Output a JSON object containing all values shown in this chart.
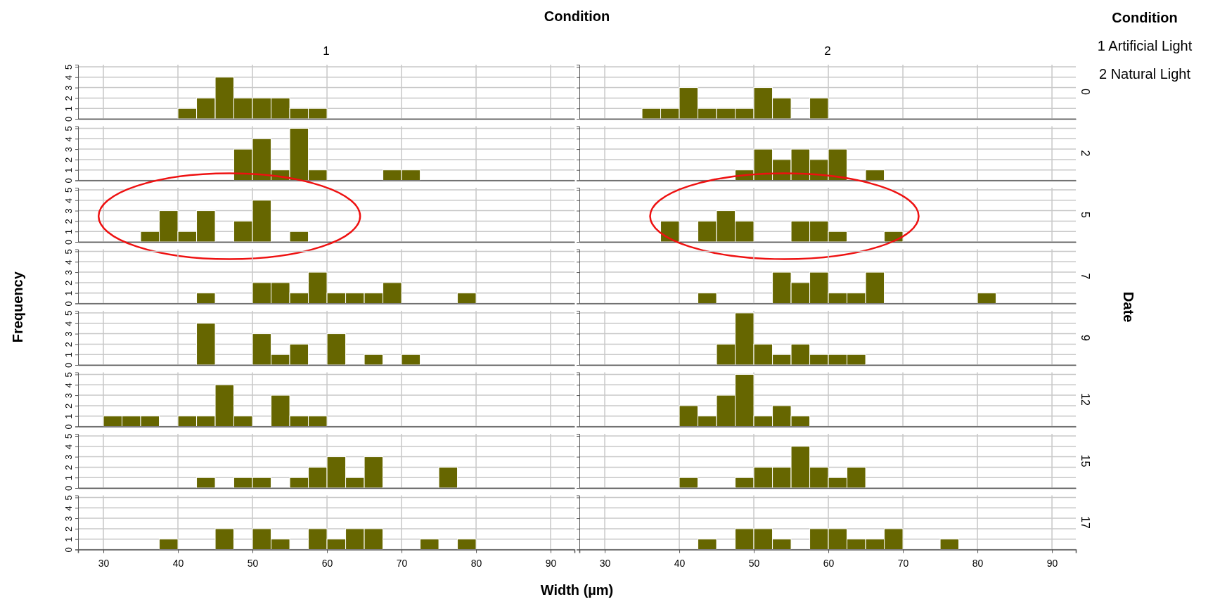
{
  "chart_data": [
    {
      "type": "histogram",
      "title": "1",
      "color": "#666600",
      "bins": [
        30,
        32.5,
        35,
        37.5,
        40,
        42.5,
        45,
        47.5,
        50,
        52.5,
        55,
        57.5,
        60,
        62.5,
        65,
        67.5,
        70,
        72.5,
        75,
        77.5,
        80,
        82.5
      ],
      "values": [
        0,
        0,
        0,
        0,
        1,
        2,
        4,
        2,
        2,
        2,
        1,
        1,
        0,
        0,
        0,
        0,
        0,
        0,
        0,
        0,
        0
      ],
      "xlim": [
        26.6,
        93.2
      ],
      "xticks": [
        30,
        40,
        50,
        60,
        70,
        80,
        90
      ],
      "ylim": [
        0,
        5.2
      ],
      "yticks": [
        0,
        1,
        2,
        3,
        4,
        5
      ],
      "grid": true,
      "tick_labels": "y"
    },
    {
      "type": "histogram",
      "title": "2",
      "y2label": "0",
      "color": "#666600",
      "bins": [
        30,
        32.5,
        35,
        37.5,
        40,
        42.5,
        45,
        47.5,
        50,
        52.5,
        55,
        57.5,
        60,
        62.5,
        65,
        67.5,
        70,
        72.5,
        75,
        77.5,
        80,
        82.5
      ],
      "values": [
        0,
        0,
        1,
        1,
        3,
        1,
        1,
        1,
        3,
        2,
        0,
        2,
        0,
        0,
        0,
        0,
        0,
        0,
        0,
        0,
        0
      ],
      "xlim": [
        26.6,
        93.2
      ],
      "xticks": [
        30,
        40,
        50,
        60,
        70,
        80,
        90
      ],
      "ylim": [
        0,
        5.2
      ],
      "yticks": [
        0,
        1,
        2,
        3,
        4,
        5
      ],
      "grid": true,
      "tick_labels": false
    },
    {
      "type": "histogram",
      "color": "#666600",
      "bins": [
        30,
        32.5,
        35,
        37.5,
        40,
        42.5,
        45,
        47.5,
        50,
        52.5,
        55,
        57.5,
        60,
        62.5,
        65,
        67.5,
        70,
        72.5,
        75,
        77.5,
        80,
        82.5
      ],
      "values": [
        0,
        0,
        0,
        0,
        0,
        0,
        0,
        3,
        4,
        1,
        5,
        1,
        0,
        0,
        0,
        1,
        1,
        0,
        0,
        0,
        0
      ],
      "xlim": [
        26.6,
        93.2
      ],
      "xticks": [
        30,
        40,
        50,
        60,
        70,
        80,
        90
      ],
      "ylim": [
        0,
        5.2
      ],
      "yticks": [
        0,
        1,
        2,
        3,
        4,
        5
      ],
      "grid": true,
      "tick_labels": "y"
    },
    {
      "type": "histogram",
      "y2label": "2",
      "color": "#666600",
      "bins": [
        30,
        32.5,
        35,
        37.5,
        40,
        42.5,
        45,
        47.5,
        50,
        52.5,
        55,
        57.5,
        60,
        62.5,
        65,
        67.5,
        70,
        72.5,
        75,
        77.5,
        80,
        82.5
      ],
      "values": [
        0,
        0,
        0,
        0,
        0,
        0,
        0,
        1,
        3,
        2,
        3,
        2,
        3,
        0,
        1,
        0,
        0,
        0,
        0,
        0,
        0
      ],
      "xlim": [
        26.6,
        93.2
      ],
      "xticks": [
        30,
        40,
        50,
        60,
        70,
        80,
        90
      ],
      "ylim": [
        0,
        5.2
      ],
      "yticks": [
        0,
        1,
        2,
        3,
        4,
        5
      ],
      "grid": true,
      "tick_labels": false
    },
    {
      "type": "histogram",
      "color": "#666600",
      "bins": [
        30,
        32.5,
        35,
        37.5,
        40,
        42.5,
        45,
        47.5,
        50,
        52.5,
        55,
        57.5,
        60,
        62.5,
        65,
        67.5,
        70,
        72.5,
        75,
        77.5,
        80,
        82.5
      ],
      "values": [
        0,
        0,
        1,
        3,
        1,
        3,
        0,
        2,
        4,
        0,
        1,
        0,
        0,
        0,
        0,
        0,
        0,
        0,
        0,
        0,
        0
      ],
      "xlim": [
        26.6,
        93.2
      ],
      "xticks": [
        30,
        40,
        50,
        60,
        70,
        80,
        90
      ],
      "ylim": [
        0,
        5.2
      ],
      "yticks": [
        0,
        1,
        2,
        3,
        4,
        5
      ],
      "grid": true,
      "tick_labels": "y"
    },
    {
      "type": "histogram",
      "y2label": "5",
      "color": "#666600",
      "bins": [
        30,
        32.5,
        35,
        37.5,
        40,
        42.5,
        45,
        47.5,
        50,
        52.5,
        55,
        57.5,
        60,
        62.5,
        65,
        67.5,
        70,
        72.5,
        75,
        77.5,
        80,
        82.5
      ],
      "values": [
        0,
        0,
        0,
        2,
        0,
        2,
        3,
        2,
        0,
        0,
        2,
        2,
        1,
        0,
        0,
        1,
        0,
        0,
        0,
        0,
        0
      ],
      "xlim": [
        26.6,
        93.2
      ],
      "xticks": [
        30,
        40,
        50,
        60,
        70,
        80,
        90
      ],
      "ylim": [
        0,
        5.2
      ],
      "yticks": [
        0,
        1,
        2,
        3,
        4,
        5
      ],
      "grid": true,
      "tick_labels": false
    },
    {
      "type": "histogram",
      "color": "#666600",
      "bins": [
        30,
        32.5,
        35,
        37.5,
        40,
        42.5,
        45,
        47.5,
        50,
        52.5,
        55,
        57.5,
        60,
        62.5,
        65,
        67.5,
        70,
        72.5,
        75,
        77.5,
        80,
        82.5
      ],
      "values": [
        0,
        0,
        0,
        0,
        0,
        1,
        0,
        0,
        2,
        2,
        1,
        3,
        1,
        1,
        1,
        2,
        0,
        0,
        0,
        1,
        0
      ],
      "xlim": [
        26.6,
        93.2
      ],
      "xticks": [
        30,
        40,
        50,
        60,
        70,
        80,
        90
      ],
      "ylim": [
        0,
        5.2
      ],
      "yticks": [
        0,
        1,
        2,
        3,
        4,
        5
      ],
      "grid": true,
      "tick_labels": "y"
    },
    {
      "type": "histogram",
      "y2label": "7",
      "color": "#666600",
      "bins": [
        30,
        32.5,
        35,
        37.5,
        40,
        42.5,
        45,
        47.5,
        50,
        52.5,
        55,
        57.5,
        60,
        62.5,
        65,
        67.5,
        70,
        72.5,
        75,
        77.5,
        80,
        82.5
      ],
      "values": [
        0,
        0,
        0,
        0,
        0,
        1,
        0,
        0,
        0,
        3,
        2,
        3,
        1,
        1,
        3,
        0,
        0,
        0,
        0,
        0,
        1
      ],
      "xlim": [
        26.6,
        93.2
      ],
      "xticks": [
        30,
        40,
        50,
        60,
        70,
        80,
        90
      ],
      "ylim": [
        0,
        5.2
      ],
      "yticks": [
        0,
        1,
        2,
        3,
        4,
        5
      ],
      "grid": true,
      "tick_labels": false
    },
    {
      "type": "histogram",
      "color": "#666600",
      "bins": [
        30,
        32.5,
        35,
        37.5,
        40,
        42.5,
        45,
        47.5,
        50,
        52.5,
        55,
        57.5,
        60,
        62.5,
        65,
        67.5,
        70,
        72.5,
        75,
        77.5,
        80,
        82.5
      ],
      "values": [
        0,
        0,
        0,
        0,
        0,
        4,
        0,
        0,
        3,
        1,
        2,
        0,
        3,
        0,
        1,
        0,
        1,
        0,
        0,
        0,
        0
      ],
      "xlim": [
        26.6,
        93.2
      ],
      "xticks": [
        30,
        40,
        50,
        60,
        70,
        80,
        90
      ],
      "ylim": [
        0,
        5.2
      ],
      "yticks": [
        0,
        1,
        2,
        3,
        4,
        5
      ],
      "grid": true,
      "tick_labels": "y"
    },
    {
      "type": "histogram",
      "y2label": "9",
      "color": "#666600",
      "bins": [
        30,
        32.5,
        35,
        37.5,
        40,
        42.5,
        45,
        47.5,
        50,
        52.5,
        55,
        57.5,
        60,
        62.5,
        65,
        67.5,
        70,
        72.5,
        75,
        77.5,
        80,
        82.5
      ],
      "values": [
        0,
        0,
        0,
        0,
        0,
        0,
        2,
        5,
        2,
        1,
        2,
        1,
        1,
        1,
        0,
        0,
        0,
        0,
        0,
        0,
        0
      ],
      "xlim": [
        26.6,
        93.2
      ],
      "xticks": [
        30,
        40,
        50,
        60,
        70,
        80,
        90
      ],
      "ylim": [
        0,
        5.2
      ],
      "yticks": [
        0,
        1,
        2,
        3,
        4,
        5
      ],
      "grid": true,
      "tick_labels": false
    },
    {
      "type": "histogram",
      "color": "#666600",
      "bins": [
        30,
        32.5,
        35,
        37.5,
        40,
        42.5,
        45,
        47.5,
        50,
        52.5,
        55,
        57.5,
        60,
        62.5,
        65,
        67.5,
        70,
        72.5,
        75,
        77.5,
        80,
        82.5
      ],
      "values": [
        1,
        1,
        1,
        0,
        1,
        1,
        4,
        1,
        0,
        3,
        1,
        1,
        0,
        0,
        0,
        0,
        0,
        0,
        0,
        0,
        0
      ],
      "xlim": [
        26.6,
        93.2
      ],
      "xticks": [
        30,
        40,
        50,
        60,
        70,
        80,
        90
      ],
      "ylim": [
        0,
        5.2
      ],
      "yticks": [
        0,
        1,
        2,
        3,
        4,
        5
      ],
      "grid": true,
      "tick_labels": "y"
    },
    {
      "type": "histogram",
      "y2label": "12",
      "color": "#666600",
      "bins": [
        30,
        32.5,
        35,
        37.5,
        40,
        42.5,
        45,
        47.5,
        50,
        52.5,
        55,
        57.5,
        60,
        62.5,
        65,
        67.5,
        70,
        72.5,
        75,
        77.5,
        80,
        82.5
      ],
      "values": [
        0,
        0,
        0,
        0,
        2,
        1,
        3,
        5,
        1,
        2,
        1,
        0,
        0,
        0,
        0,
        0,
        0,
        0,
        0,
        0,
        0
      ],
      "xlim": [
        26.6,
        93.2
      ],
      "xticks": [
        30,
        40,
        50,
        60,
        70,
        80,
        90
      ],
      "ylim": [
        0,
        5.2
      ],
      "yticks": [
        0,
        1,
        2,
        3,
        4,
        5
      ],
      "grid": true,
      "tick_labels": false
    },
    {
      "type": "histogram",
      "color": "#666600",
      "bins": [
        30,
        32.5,
        35,
        37.5,
        40,
        42.5,
        45,
        47.5,
        50,
        52.5,
        55,
        57.5,
        60,
        62.5,
        65,
        67.5,
        70,
        72.5,
        75,
        77.5,
        80,
        82.5
      ],
      "values": [
        0,
        0,
        0,
        0,
        0,
        1,
        0,
        1,
        1,
        0,
        1,
        2,
        3,
        1,
        3,
        0,
        0,
        0,
        2,
        0,
        0
      ],
      "xlim": [
        26.6,
        93.2
      ],
      "xticks": [
        30,
        40,
        50,
        60,
        70,
        80,
        90
      ],
      "ylim": [
        0,
        5.2
      ],
      "yticks": [
        0,
        1,
        2,
        3,
        4,
        5
      ],
      "grid": true,
      "tick_labels": "y"
    },
    {
      "type": "histogram",
      "y2label": "15",
      "color": "#666600",
      "bins": [
        30,
        32.5,
        35,
        37.5,
        40,
        42.5,
        45,
        47.5,
        50,
        52.5,
        55,
        57.5,
        60,
        62.5,
        65,
        67.5,
        70,
        72.5,
        75,
        77.5,
        80,
        82.5
      ],
      "values": [
        0,
        0,
        0,
        0,
        1,
        0,
        0,
        1,
        2,
        2,
        4,
        2,
        1,
        2,
        0,
        0,
        0,
        0,
        0,
        0,
        0
      ],
      "xlim": [
        26.6,
        93.2
      ],
      "xticks": [
        30,
        40,
        50,
        60,
        70,
        80,
        90
      ],
      "ylim": [
        0,
        5.2
      ],
      "yticks": [
        0,
        1,
        2,
        3,
        4,
        5
      ],
      "grid": true,
      "tick_labels": false
    },
    {
      "type": "histogram",
      "color": "#666600",
      "bins": [
        30,
        32.5,
        35,
        37.5,
        40,
        42.5,
        45,
        47.5,
        50,
        52.5,
        55,
        57.5,
        60,
        62.5,
        65,
        67.5,
        70,
        72.5,
        75,
        77.5,
        80,
        82.5
      ],
      "values": [
        0,
        0,
        0,
        1,
        0,
        0,
        2,
        0,
        2,
        1,
        0,
        2,
        1,
        2,
        2,
        0,
        0,
        1,
        0,
        1,
        0
      ],
      "xlim": [
        26.6,
        93.2
      ],
      "xticks": [
        30,
        40,
        50,
        60,
        70,
        80,
        90
      ],
      "ylim": [
        0,
        5.2
      ],
      "yticks": [
        0,
        1,
        2,
        3,
        4,
        5
      ],
      "grid": true
    },
    {
      "type": "histogram",
      "y2label": "17",
      "color": "#666600",
      "bins": [
        30,
        32.5,
        35,
        37.5,
        40,
        42.5,
        45,
        47.5,
        50,
        52.5,
        55,
        57.5,
        60,
        62.5,
        65,
        67.5,
        70,
        72.5,
        75,
        77.5,
        80,
        82.5
      ],
      "values": [
        0,
        0,
        0,
        0,
        0,
        1,
        0,
        2,
        2,
        1,
        0,
        2,
        2,
        1,
        1,
        2,
        0,
        0,
        1,
        0,
        0
      ],
      "xlim": [
        26.6,
        93.2
      ],
      "xticks": [
        30,
        40,
        50,
        60,
        70,
        80,
        90
      ],
      "ylim": [
        0,
        5.2
      ],
      "yticks": [
        0,
        1,
        2,
        3,
        4,
        5
      ],
      "grid": true,
      "tick_labels": "x"
    },
    {
      "type": "other",
      "title": "Condition",
      "xlabel": "Width (µm)",
      "ylabel": "Frequency",
      "y2label": "Date"
    },
    {
      "type": "other",
      "legend_title": "Condition",
      "annotations": [
        "1 Artificial Light",
        "2 Natural Light"
      ]
    }
  ]
}
